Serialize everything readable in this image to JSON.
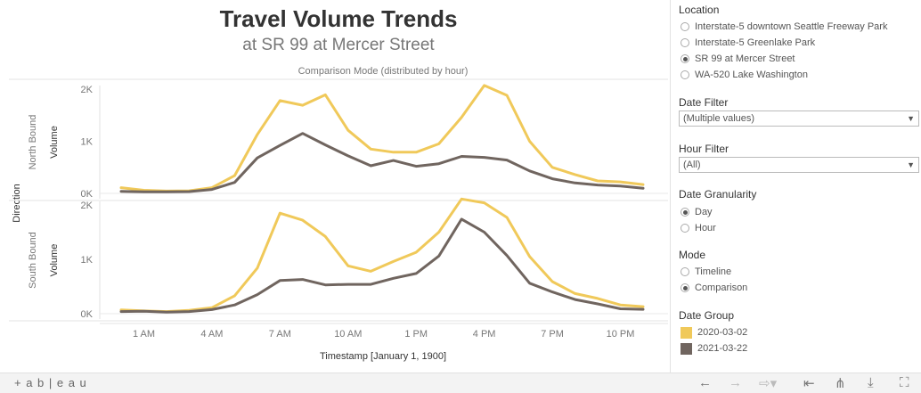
{
  "header": {
    "title": "Travel Volume Trends",
    "subtitle": "at SR 99 at Mercer Street"
  },
  "chart_data": {
    "type": "line",
    "title": "Comparison Mode (distributed by hour)",
    "xlabel": "Timestamp [January 1, 1900]",
    "ylabel": "Volume",
    "row_axis_label": "Direction",
    "x": [
      0,
      1,
      2,
      3,
      4,
      5,
      6,
      7,
      8,
      9,
      10,
      11,
      12,
      13,
      14,
      15,
      16,
      17,
      18,
      19,
      20,
      21,
      22,
      23
    ],
    "x_ticks": [
      "1 AM",
      "4 AM",
      "7 AM",
      "10 AM",
      "1 PM",
      "4 PM",
      "7 PM",
      "10 PM"
    ],
    "x_tick_positions": [
      1,
      4,
      7,
      10,
      13,
      16,
      19,
      22
    ],
    "y_ticks": [
      "0K",
      "1K",
      "2K"
    ],
    "ylim": [
      0,
      2100
    ],
    "panels": [
      {
        "name": "North Bound",
        "series": [
          {
            "name": "2020-03-02",
            "color": "#f0c95a",
            "values": [
              110,
              60,
              45,
              50,
              110,
              340,
              1130,
              1780,
              1690,
              1890,
              1210,
              850,
              790,
              790,
              950,
              1460,
              2070,
              1880,
              1000,
              500,
              360,
              240,
              220,
              170
            ]
          },
          {
            "name": "2021-03-22",
            "color": "#70655f",
            "values": [
              40,
              30,
              30,
              35,
              75,
              210,
              680,
              920,
              1150,
              930,
              720,
              530,
              630,
              520,
              570,
              710,
              690,
              640,
              430,
              280,
              200,
              160,
              140,
              100
            ]
          }
        ]
      },
      {
        "name": "South Bound",
        "series": [
          {
            "name": "2020-03-02",
            "color": "#f0c95a",
            "values": [
              70,
              50,
              40,
              60,
              110,
              330,
              840,
              1850,
              1720,
              1420,
              880,
              780,
              960,
              1130,
              1500,
              2110,
              2040,
              1770,
              1050,
              590,
              370,
              280,
              160,
              130
            ]
          },
          {
            "name": "2021-03-22",
            "color": "#70655f",
            "values": [
              40,
              45,
              30,
              40,
              75,
              160,
              350,
              610,
              630,
              530,
              540,
              540,
              650,
              740,
              1060,
              1740,
              1500,
              1070,
              560,
              400,
              260,
              180,
              90,
              80
            ]
          }
        ]
      }
    ],
    "grid": false
  },
  "sidebar": {
    "location": {
      "label": "Location",
      "options": [
        {
          "label": "Interstate-5 downtown Seattle Freeway Park",
          "selected": false
        },
        {
          "label": "Interstate-5 Greenlake Park",
          "selected": false
        },
        {
          "label": "SR 99 at Mercer Street",
          "selected": true
        },
        {
          "label": "WA-520 Lake Washington",
          "selected": false
        }
      ]
    },
    "date_filter": {
      "label": "Date Filter",
      "value": "(Multiple values)"
    },
    "hour_filter": {
      "label": "Hour Filter",
      "value": "(All)"
    },
    "granularity": {
      "label": "Date Granularity",
      "options": [
        {
          "label": "Day",
          "selected": true
        },
        {
          "label": "Hour",
          "selected": false
        }
      ]
    },
    "mode": {
      "label": "Mode",
      "options": [
        {
          "label": "Timeline",
          "selected": false
        },
        {
          "label": "Comparison",
          "selected": true
        }
      ]
    },
    "date_group": {
      "label": "Date Group",
      "items": [
        {
          "label": "2020-03-02",
          "color": "#f0c95a"
        },
        {
          "label": "2021-03-22",
          "color": "#70655f"
        }
      ]
    }
  },
  "toolbar": {
    "logo_text": "+ a b | e a u",
    "icons": [
      "undo-icon",
      "redo-icon",
      "revert-icon",
      "reset-icon",
      "share-icon",
      "download-icon",
      "fullscreen-icon"
    ]
  }
}
